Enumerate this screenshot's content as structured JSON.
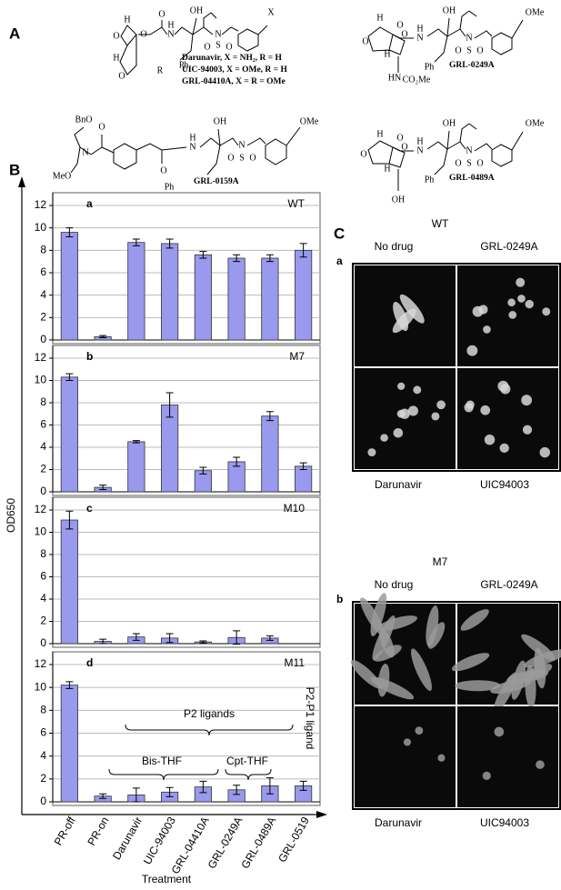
{
  "panel_a": {
    "label": "A",
    "structures": [
      {
        "atoms": [
          "O",
          "H",
          "O",
          "O",
          "N",
          "H",
          "OH",
          "N",
          "S",
          "O",
          "O",
          "X",
          "H",
          "O",
          "R",
          "Ph"
        ],
        "legend": [
          "Darunavir, X = NH₂, R = H",
          "UIC-94003, X = OMe, R = H",
          "GRL-04410A, X = R = OMe"
        ]
      },
      {
        "atoms": [
          "O",
          "H",
          "O",
          "O",
          "N",
          "H",
          "OH",
          "N",
          "S",
          "O",
          "O",
          "OMe",
          "H",
          "Ph",
          "HN",
          "CO₂Me"
        ],
        "legend": [
          "GRL-0249A"
        ]
      },
      {
        "atoms": [
          "BnO",
          "N",
          "O",
          "MeO",
          "O",
          "N",
          "H",
          "OH",
          "N",
          "S",
          "O",
          "O",
          "OMe",
          "Ph"
        ],
        "legend": [
          "GRL-0159A"
        ]
      },
      {
        "atoms": [
          "O",
          "H",
          "O",
          "O",
          "N",
          "H",
          "OH",
          "N",
          "S",
          "O",
          "O",
          "OMe",
          "H",
          "Ph",
          "OH"
        ],
        "legend": [
          "GRL-0489A"
        ]
      }
    ]
  },
  "panel_b": {
    "label": "B",
    "ylabel": "OD650",
    "xlabel": "Treatment"
  },
  "chart_data": [
    {
      "type": "bar",
      "label": "a",
      "title": "WT",
      "categories": [
        null,
        null,
        null,
        null,
        null,
        null,
        null,
        null
      ],
      "values": [
        9.6,
        0.3,
        8.7,
        8.6,
        7.6,
        7.3,
        7.3,
        8.0
      ],
      "errors": [
        0.4,
        0.1,
        0.3,
        0.4,
        0.3,
        0.3,
        0.3,
        0.6
      ],
      "color": "#9999ee",
      "ylim": [
        0,
        12
      ],
      "yticks": [
        0,
        2,
        4,
        6,
        8,
        10,
        12
      ],
      "grid": true
    },
    {
      "type": "bar",
      "label": "b",
      "title": "M7",
      "categories": [
        null,
        null,
        null,
        null,
        null,
        null,
        null,
        null
      ],
      "values": [
        10.3,
        0.4,
        4.5,
        7.8,
        1.9,
        2.7,
        6.8,
        2.3
      ],
      "errors": [
        0.3,
        0.2,
        0.1,
        1.1,
        0.3,
        0.4,
        0.4,
        0.3
      ],
      "color": "#9999ee",
      "ylim": [
        0,
        12
      ],
      "yticks": [
        0,
        2,
        4,
        6,
        8,
        10,
        12
      ],
      "grid": true
    },
    {
      "type": "bar",
      "label": "c",
      "title": "M10",
      "categories": [
        null,
        null,
        null,
        null,
        null,
        null,
        null,
        null
      ],
      "values": [
        11.1,
        0.2,
        0.6,
        0.5,
        0.15,
        0.55,
        0.5,
        0
      ],
      "errors": [
        0.8,
        0.2,
        0.3,
        0.4,
        0.1,
        0.6,
        0.2,
        0
      ],
      "color": "#9999ee",
      "ylim": [
        0,
        12
      ],
      "yticks": [
        0,
        2,
        4,
        6,
        8,
        10,
        12
      ],
      "grid": true
    },
    {
      "type": "bar",
      "label": "d",
      "title": "M11",
      "categories": [
        "PR-off",
        "PR-on",
        "Darunavir",
        "UIC-94003",
        "GRL-04410A",
        "GRL-0249A",
        "GRL-0489A",
        "GRL-0519"
      ],
      "values": [
        10.2,
        0.5,
        0.6,
        0.85,
        1.3,
        1.05,
        1.4,
        1.4
      ],
      "errors": [
        0.3,
        0.2,
        0.6,
        0.4,
        0.5,
        0.4,
        0.7,
        0.4
      ],
      "color": "#9999ee",
      "ylim": [
        0,
        12
      ],
      "yticks": [
        0,
        2,
        4,
        6,
        8,
        10,
        12
      ],
      "grid": true,
      "annotations": [
        "P2 ligands",
        "Bis-THF",
        "Cpt-THF",
        "P2-P1 ligand"
      ]
    }
  ],
  "panel_c": {
    "label": "C",
    "groups": [
      {
        "title": "WT",
        "label": "a",
        "top": [
          "No drug",
          "GRL-0249A"
        ],
        "bottom": [
          "Darunavir",
          "UIC94003"
        ]
      },
      {
        "title": "M7",
        "label": "b",
        "top": [
          "No drug",
          "GRL-0249A"
        ],
        "bottom": [
          "Darunavir",
          "UIC94003"
        ]
      }
    ]
  }
}
